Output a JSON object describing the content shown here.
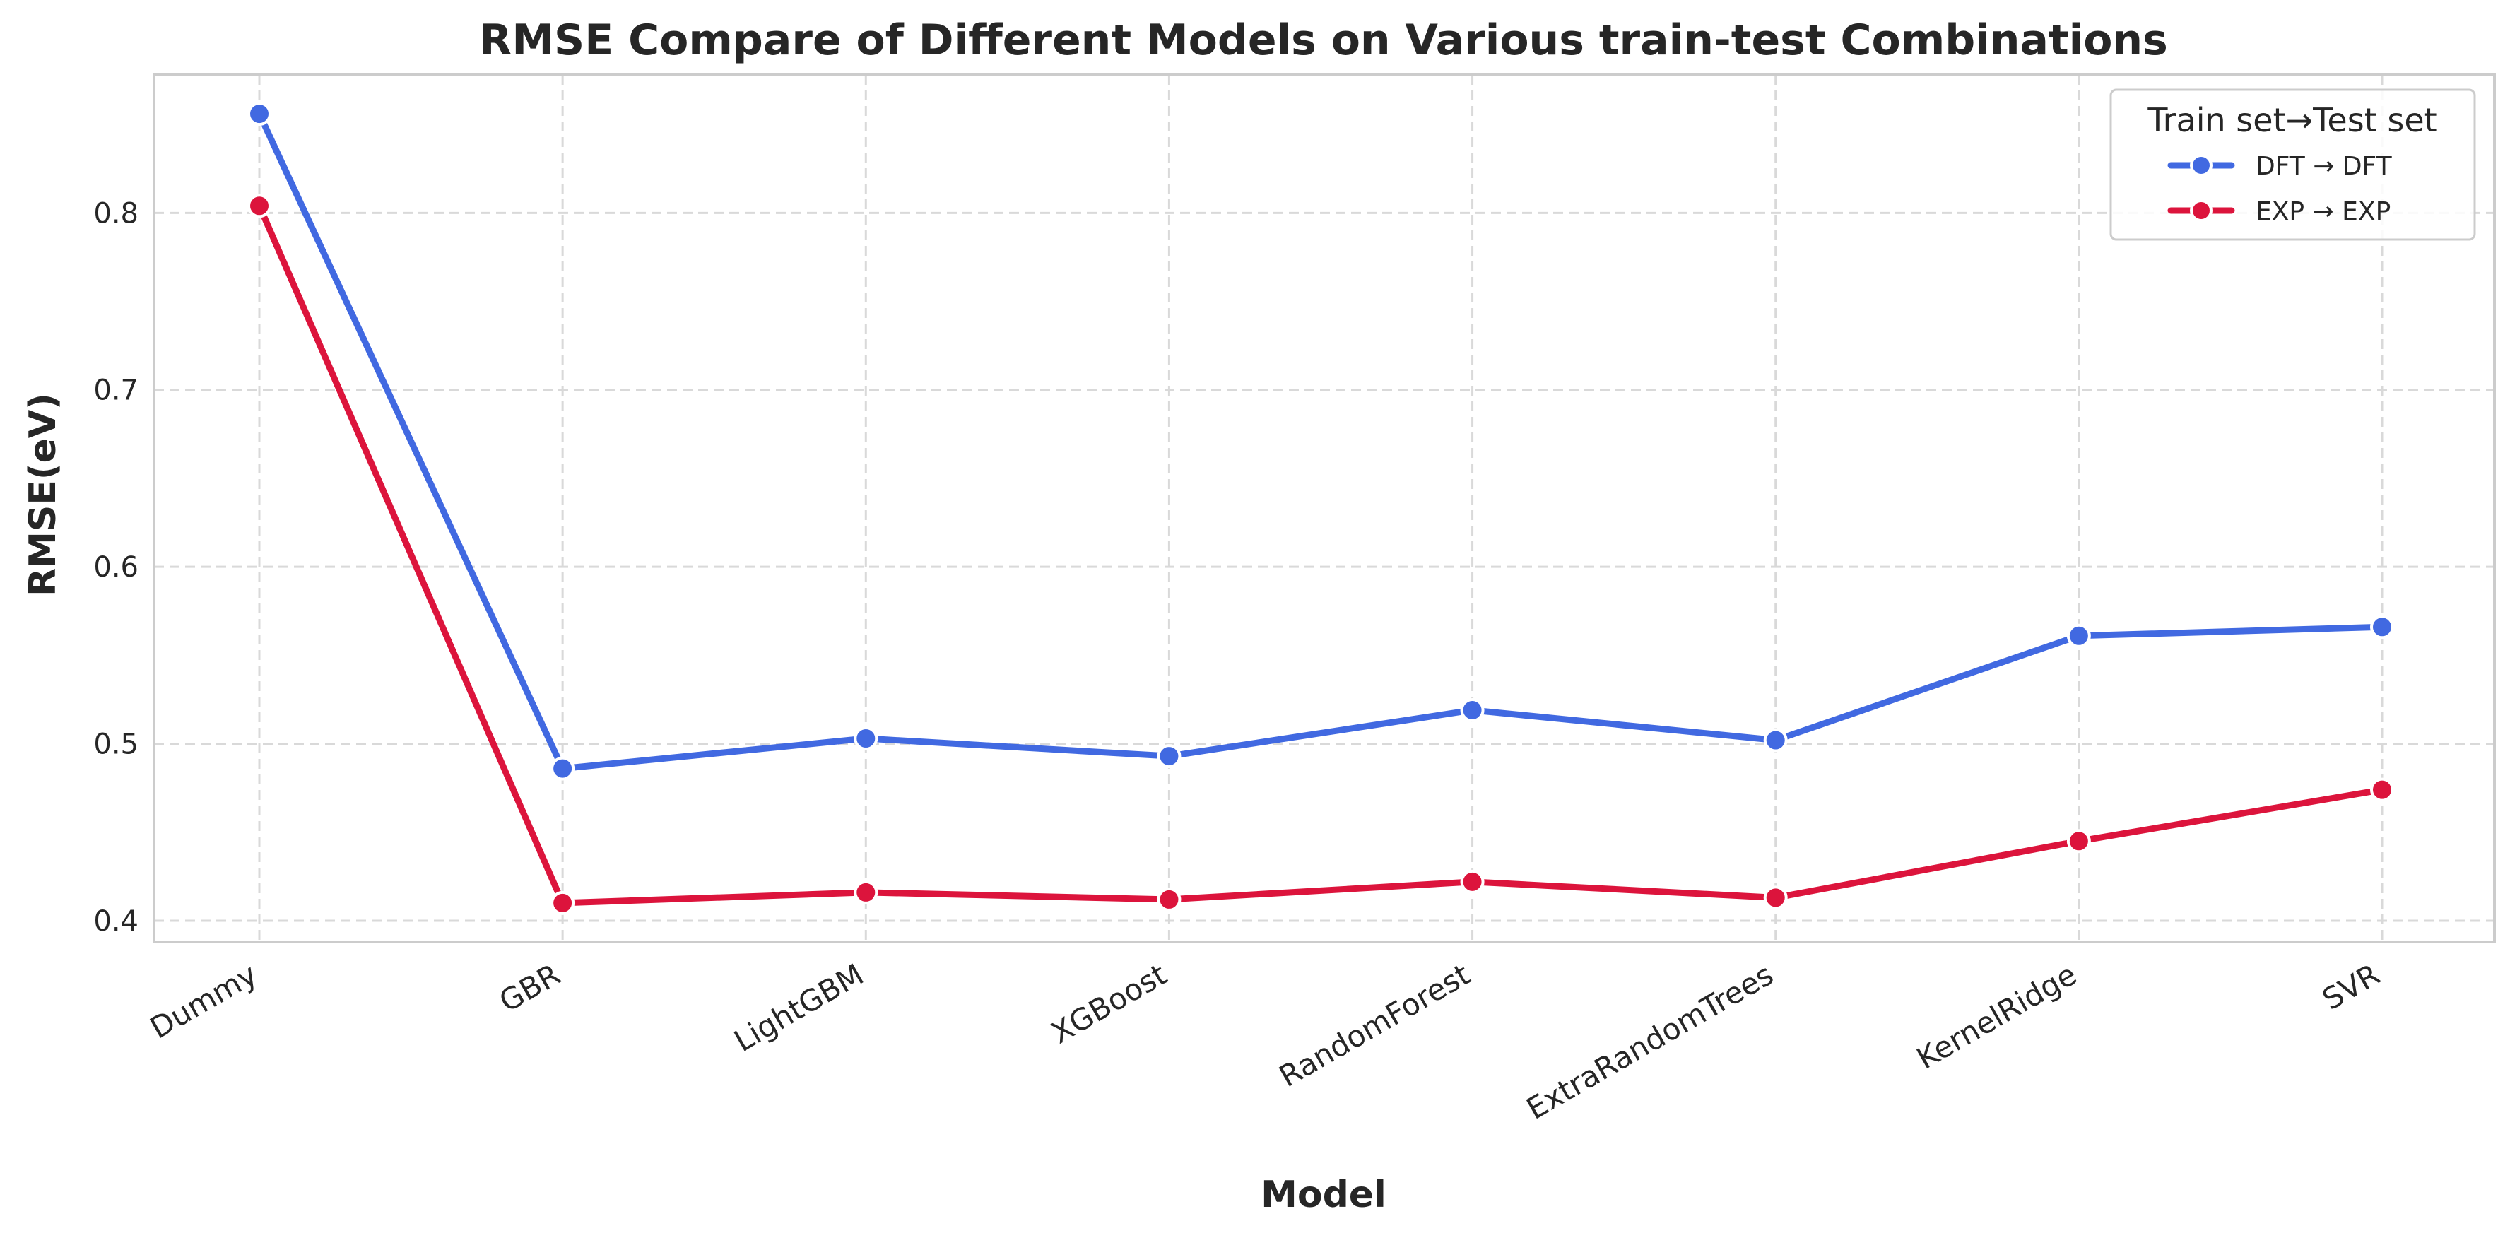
{
  "chart_data": {
    "type": "line",
    "title": "RMSE Compare of Different Models on Various train-test Combinations",
    "xlabel": "Model",
    "ylabel": "RMSE(eV)",
    "categories": [
      "Dummy",
      "GBR",
      "LightGBM",
      "XGBoost",
      "RandomForest",
      "ExtraRandomTrees",
      "KernelRidge",
      "SVR"
    ],
    "ylim": [
      0.388,
      0.878
    ],
    "yticks": [
      "0.4",
      "0.5",
      "0.6",
      "0.7",
      "0.8"
    ],
    "grid": true,
    "legend": {
      "title": "Train set→Test set",
      "placement": "top-right"
    },
    "series": [
      {
        "name": "DFT → DFT",
        "color": "#4169E1",
        "values": [
          0.856,
          0.486,
          0.503,
          0.493,
          0.519,
          0.502,
          0.561,
          0.566
        ]
      },
      {
        "name": "EXP → EXP",
        "color": "#DC143C",
        "values": [
          0.804,
          0.41,
          0.416,
          0.412,
          0.422,
          0.413,
          0.445,
          0.474
        ]
      }
    ]
  }
}
